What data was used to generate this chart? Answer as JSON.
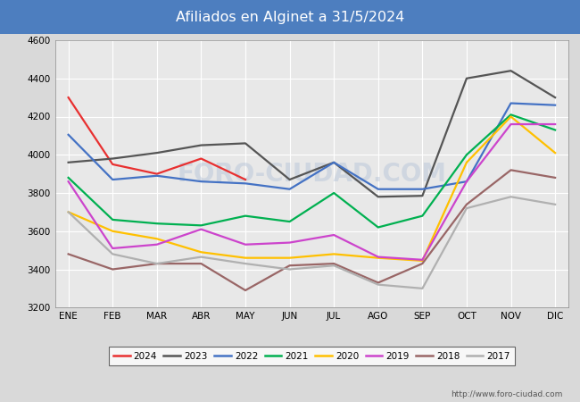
{
  "title": "Afiliados en Alginet a 31/5/2024",
  "title_bg_color": "#4d7ebf",
  "title_text_color": "#ffffff",
  "outer_bg_color": "#d9d9d9",
  "plot_bg_color": "#e8e8e8",
  "footer_text": "http://www.foro-ciudad.com",
  "ylim": [
    3200,
    4600
  ],
  "yticks": [
    3200,
    3400,
    3600,
    3800,
    4000,
    4200,
    4400,
    4600
  ],
  "months": [
    "ENE",
    "FEB",
    "MAR",
    "ABR",
    "MAY",
    "JUN",
    "JUL",
    "AGO",
    "SEP",
    "OCT",
    "NOV",
    "DIC"
  ],
  "series": {
    "2024": {
      "color": "#e83030",
      "data": [
        4300,
        3950,
        3900,
        3980,
        3870,
        null,
        null,
        null,
        null,
        null,
        null,
        null
      ]
    },
    "2023": {
      "color": "#555555",
      "data": [
        3960,
        3980,
        4010,
        4050,
        4060,
        3870,
        3960,
        3780,
        3785,
        4400,
        4440,
        4300
      ]
    },
    "2022": {
      "color": "#4472c4",
      "data": [
        4105,
        3870,
        3890,
        3860,
        3850,
        3820,
        3960,
        3820,
        3820,
        3860,
        4270,
        4260
      ]
    },
    "2021": {
      "color": "#00b050",
      "data": [
        3880,
        3660,
        3640,
        3630,
        3680,
        3650,
        3800,
        3620,
        3680,
        4000,
        4210,
        4130
      ]
    },
    "2020": {
      "color": "#ffc000",
      "data": [
        3700,
        3600,
        3560,
        3490,
        3460,
        3460,
        3480,
        3460,
        3445,
        3960,
        4200,
        4010
      ]
    },
    "2019": {
      "color": "#cc44cc",
      "data": [
        3860,
        3510,
        3530,
        3610,
        3530,
        3540,
        3580,
        3465,
        3450,
        3860,
        4160,
        4160
      ]
    },
    "2018": {
      "color": "#996666",
      "data": [
        3480,
        3400,
        3430,
        3430,
        3290,
        3420,
        3430,
        3330,
        3430,
        3740,
        3920,
        3880
      ]
    },
    "2017": {
      "color": "#b0b0b0",
      "data": [
        3700,
        3480,
        3430,
        3465,
        3430,
        3400,
        3420,
        3320,
        3300,
        3720,
        3780,
        3740
      ]
    }
  },
  "watermark": "FORO-CIUDAD.COM",
  "watermark_color": "#aabbd4",
  "watermark_alpha": 0.4
}
